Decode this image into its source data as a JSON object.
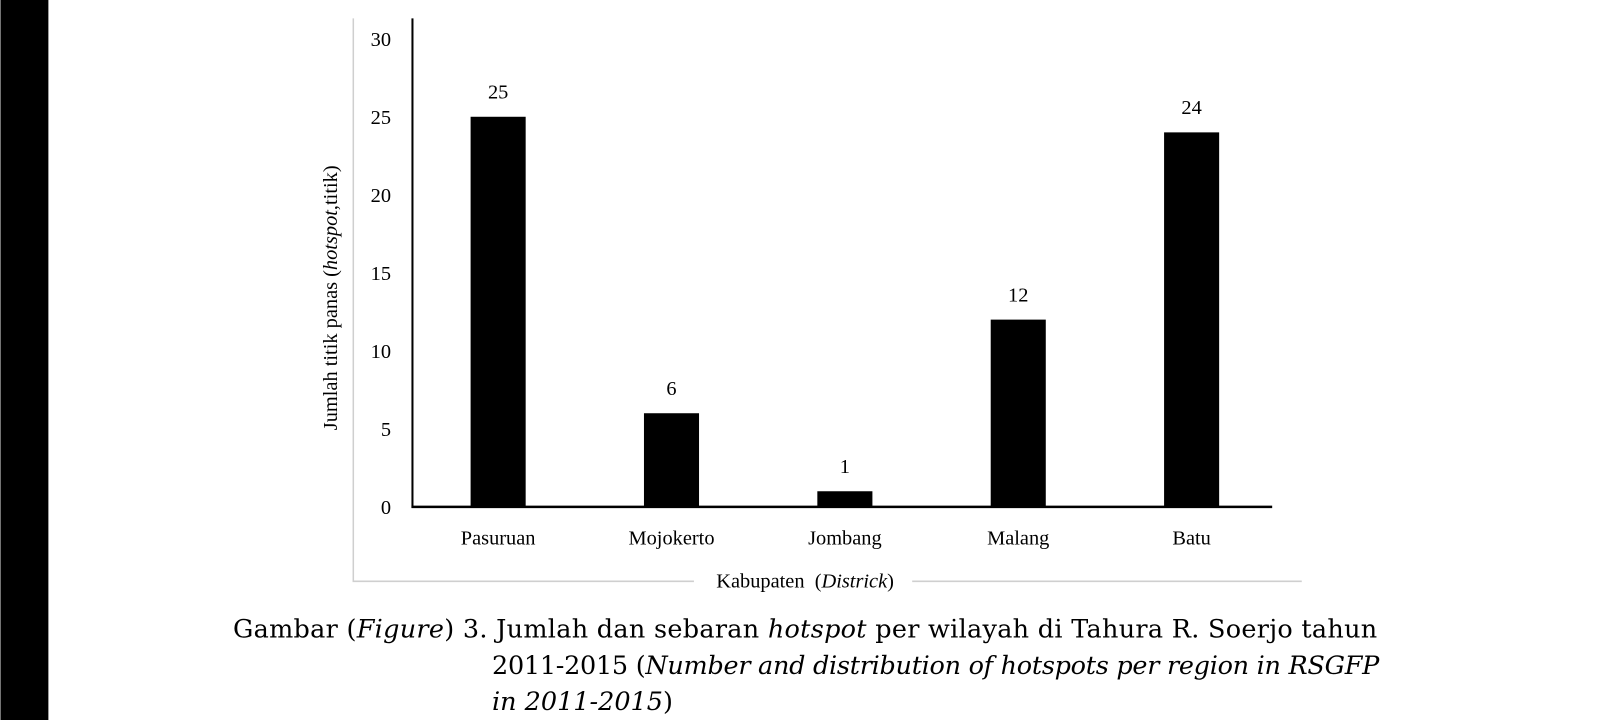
{
  "chart_data": {
    "type": "bar",
    "categories": [
      "Pasuruan",
      "Mojokerto",
      "Jombang",
      "Malang",
      "Batu"
    ],
    "values": [
      25,
      6,
      1,
      12,
      24
    ],
    "color": "#000000",
    "ylim": [
      0,
      30
    ],
    "yticks": [
      0,
      5,
      10,
      15,
      20,
      25,
      30
    ],
    "grid": false,
    "y_label": [
      "Jumlah titik panas (",
      "hotspot",
      ",titik)"
    ],
    "x_label": [
      "Kabupaten  (",
      "Districk",
      ")"
    ]
  },
  "caption": {
    "line1": [
      "Gambar (",
      "Figure",
      ") 3.  Jumlah dan sebaran ",
      "hotspot",
      " per wilayah di Tahura R. Soerjo tahun"
    ],
    "line2": [
      "2011-2015 (",
      "Number and distribution of hotspots per region in RSGFP"
    ],
    "line3": [
      "in 2011-2015",
      ")"
    ]
  }
}
